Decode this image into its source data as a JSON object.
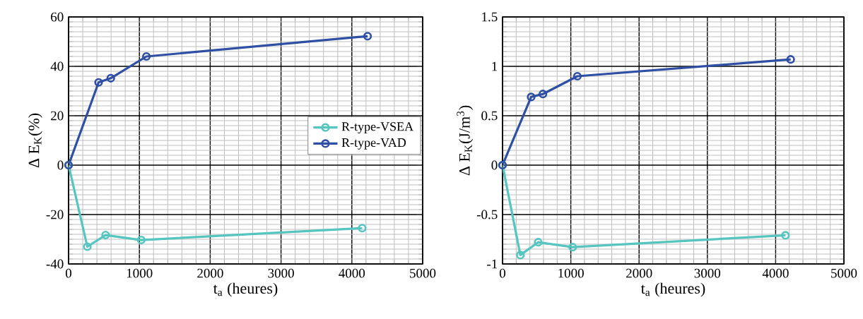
{
  "chart_data": [
    {
      "type": "line",
      "xlabel": "t$_{a}$ (heures)",
      "ylabel": "Δ E$_{K}$(%)",
      "xlim": [
        0,
        5000
      ],
      "ylim": [
        -40,
        60
      ],
      "xticks": [
        0,
        1000,
        2000,
        3000,
        4000,
        5000
      ],
      "yticks": [
        -40,
        -20,
        0,
        20,
        40,
        60
      ],
      "grid": true,
      "legend": "right",
      "marker": "circle",
      "line_style": "solid",
      "series": [
        {
          "name": "R-type-VSEA",
          "color": "#55c5c0",
          "x": [
            0,
            265,
            523,
            1026,
            4146
          ],
          "values": [
            0,
            -33,
            -28.3,
            -30.3,
            -25.5
          ]
        },
        {
          "name": "R-type-VAD",
          "color": "#2e4fa3",
          "x": [
            0,
            424,
            596,
            1099,
            4222
          ],
          "values": [
            0,
            33.5,
            35.2,
            44,
            52.2
          ]
        }
      ]
    },
    {
      "type": "line",
      "xlabel": "t$_{a}$ (heures)",
      "ylabel": "Δ E$_{K}$(J/m$^{3}$)",
      "xlim": [
        0,
        5000
      ],
      "ylim": [
        -1,
        1.5
      ],
      "xticks": [
        0,
        1000,
        2000,
        3000,
        4000,
        5000
      ],
      "yticks": [
        -1,
        -0.5,
        0,
        0.5,
        1,
        1.5
      ],
      "grid": true,
      "marker": "circle",
      "line_style": "solid",
      "series": [
        {
          "color": "#55c5c0",
          "x": [
            0,
            261,
            522,
            1027,
            4144
          ],
          "values": [
            0,
            -0.91,
            -0.78,
            -0.83,
            -0.71
          ]
        },
        {
          "color": "#2e4fa3",
          "x": [
            0,
            419,
            591,
            1096,
            4220
          ],
          "values": [
            0,
            0.69,
            0.72,
            0.9,
            1.07
          ]
        }
      ]
    }
  ]
}
